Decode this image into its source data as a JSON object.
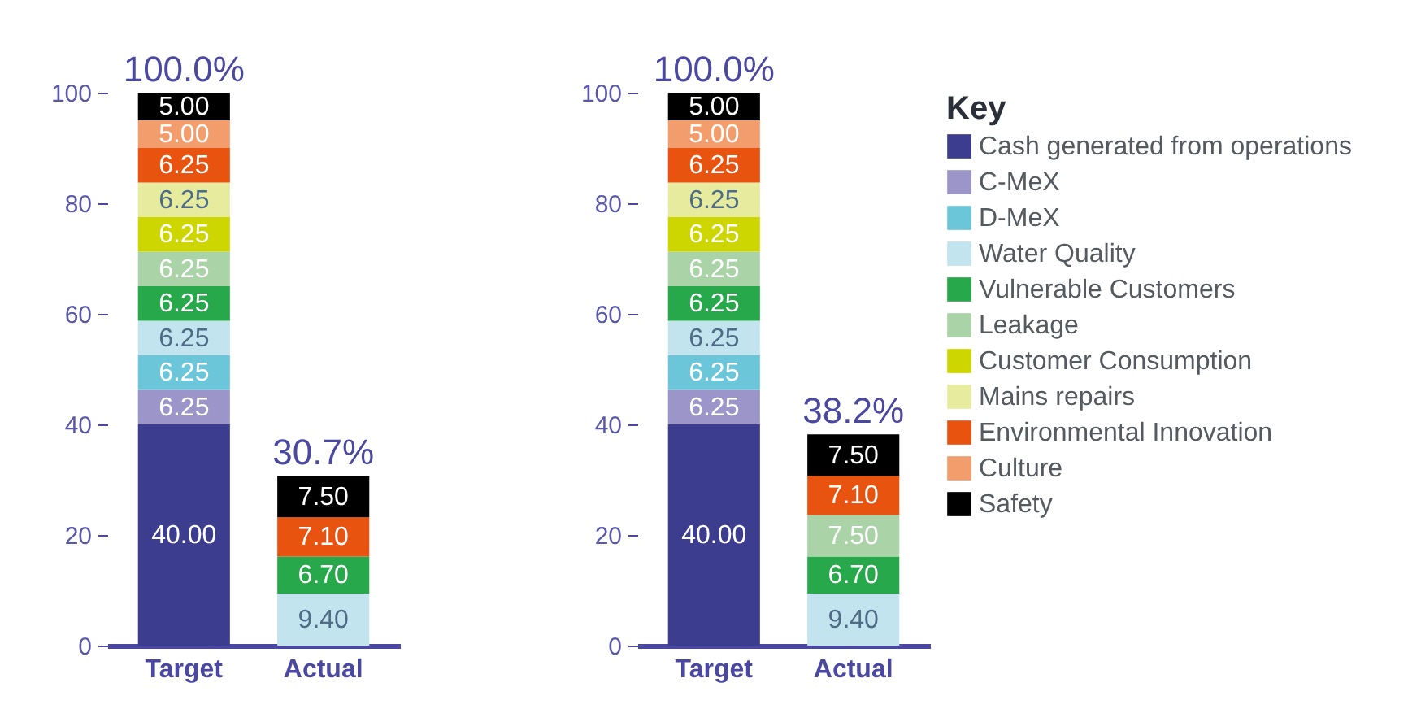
{
  "chart_data": [
    {
      "type": "bar",
      "stacked": true,
      "categories": [
        "Target",
        "Actual"
      ],
      "ylim": [
        0,
        100
      ],
      "yticks": [
        0,
        20,
        40,
        60,
        80,
        100
      ],
      "grid": false,
      "totals": [
        "100.0%",
        "30.7%"
      ],
      "series": [
        {
          "color": "#3d3d8f",
          "values": [
            40,
            null
          ],
          "value_labels": [
            "40.00",
            null
          ]
        },
        {
          "color": "#9b95c9",
          "values": [
            6.25,
            null
          ],
          "value_labels": [
            "6.25",
            null
          ]
        },
        {
          "color": "#6cc6da",
          "values": [
            6.25,
            null
          ],
          "value_labels": [
            "6.25",
            null
          ]
        },
        {
          "color": "#c1e4ee",
          "values": [
            6.25,
            9.4
          ],
          "value_labels": [
            "6.25",
            "9.40"
          ]
        },
        {
          "color": "#27a84b",
          "values": [
            6.25,
            6.7
          ],
          "value_labels": [
            "6.25",
            "6.70"
          ]
        },
        {
          "color": "#abd3a8",
          "values": [
            6.25,
            null
          ],
          "value_labels": [
            "6.25",
            null
          ]
        },
        {
          "color": "#cdd600",
          "values": [
            6.25,
            null
          ],
          "value_labels": [
            "6.25",
            null
          ]
        },
        {
          "color": "#e6eb9e",
          "values": [
            6.25,
            null
          ],
          "value_labels": [
            "6.25",
            null
          ]
        },
        {
          "color": "#e85310",
          "values": [
            6.25,
            7.1
          ],
          "value_labels": [
            "6.25",
            "7.10"
          ]
        },
        {
          "color": "#f29d6b",
          "values": [
            5,
            null
          ],
          "value_labels": [
            "5.00",
            null
          ]
        },
        {
          "color": "#000000",
          "values": [
            5,
            7.5
          ],
          "value_labels": [
            "5.00",
            "7.50"
          ]
        }
      ]
    },
    {
      "type": "bar",
      "stacked": true,
      "categories": [
        "Target",
        "Actual"
      ],
      "ylim": [
        0,
        100
      ],
      "yticks": [
        0,
        20,
        40,
        60,
        80,
        100
      ],
      "grid": false,
      "legend": "right",
      "totals": [
        "100.0%",
        "38.2%"
      ],
      "legend_title": "Key",
      "series": [
        {
          "name": "Cash generated from operations",
          "color": "#3d3d8f",
          "values": [
            40,
            null
          ],
          "value_labels": [
            "40.00",
            null
          ]
        },
        {
          "name": "C-MeX",
          "color": "#9b95c9",
          "values": [
            6.25,
            null
          ],
          "value_labels": [
            "6.25",
            null
          ]
        },
        {
          "name": "D-MeX",
          "color": "#6cc6da",
          "values": [
            6.25,
            null
          ],
          "value_labels": [
            "6.25",
            null
          ]
        },
        {
          "name": "Water Quality",
          "color": "#c1e4ee",
          "values": [
            6.25,
            9.4
          ],
          "value_labels": [
            "6.25",
            "9.40"
          ]
        },
        {
          "name": "Vulnerable Customers",
          "color": "#27a84b",
          "values": [
            6.25,
            6.7
          ],
          "value_labels": [
            "6.25",
            "6.70"
          ]
        },
        {
          "name": "Leakage",
          "color": "#abd3a8",
          "values": [
            6.25,
            7.5
          ],
          "value_labels": [
            "6.25",
            "7.50"
          ]
        },
        {
          "name": "Customer Consumption",
          "color": "#cdd600",
          "values": [
            6.25,
            null
          ],
          "value_labels": [
            "6.25",
            null
          ]
        },
        {
          "name": "Mains repairs",
          "color": "#e6eb9e",
          "values": [
            6.25,
            null
          ],
          "value_labels": [
            "6.25",
            null
          ]
        },
        {
          "name": "Environmental Innovation",
          "color": "#e85310",
          "values": [
            6.25,
            7.1
          ],
          "value_labels": [
            "6.25",
            "7.10"
          ]
        },
        {
          "name": "Culture",
          "color": "#f29d6b",
          "values": [
            5,
            null
          ],
          "value_labels": [
            "5.00",
            null
          ]
        },
        {
          "name": "Safety",
          "color": "#000000",
          "values": [
            5,
            7.5
          ],
          "value_labels": [
            "5.00",
            "7.50"
          ]
        }
      ]
    }
  ]
}
